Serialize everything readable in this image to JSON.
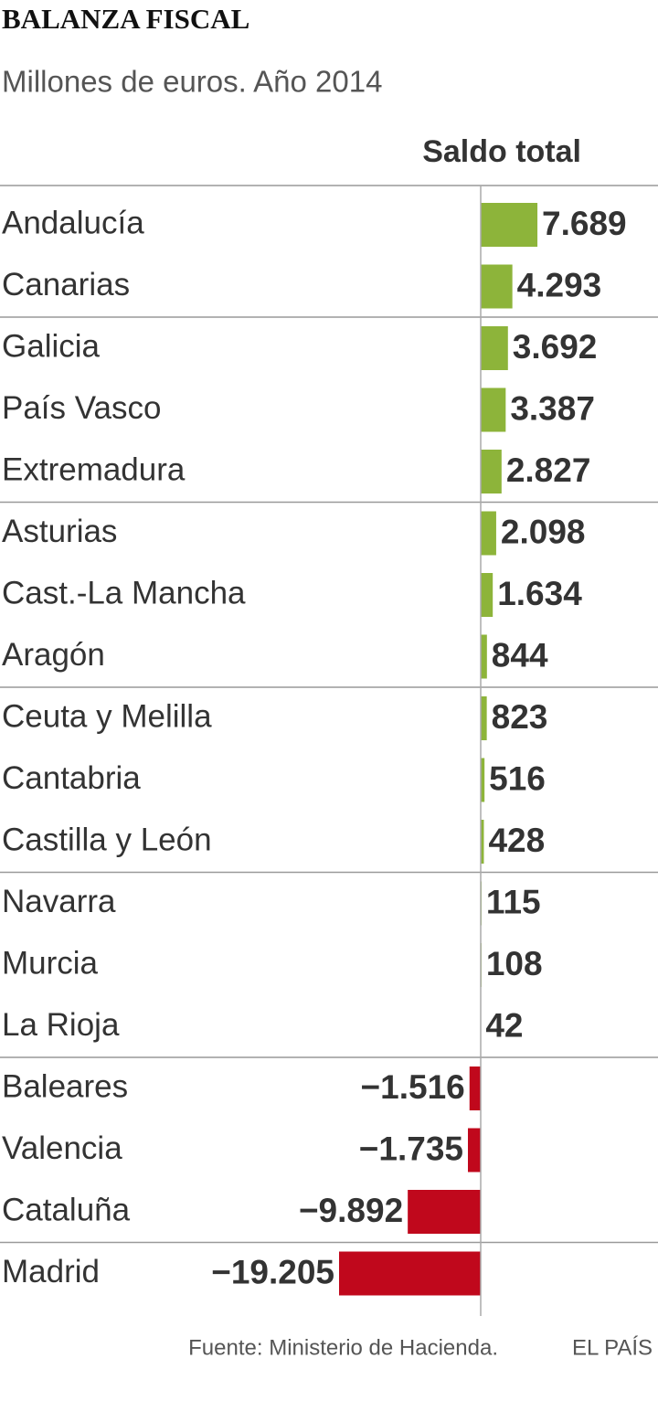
{
  "chart_data": {
    "type": "hbar",
    "title": "BALANZA FISCAL",
    "subtitle": "Millones de euros. Año 2014",
    "value_header": "Saldo total",
    "categories": [
      "Andalucía",
      "Canarias",
      "Galicia",
      "País Vasco",
      "Extremadura",
      "Asturias",
      "Cast.-La Mancha",
      "Aragón",
      "Ceuta y Melilla",
      "Cantabria",
      "Castilla y León",
      "Navarra",
      "Murcia",
      "La Rioja",
      "Baleares",
      "Valencia",
      "Cataluña",
      "Madrid"
    ],
    "values": [
      7689,
      4293,
      3692,
      3387,
      2827,
      2098,
      1634,
      844,
      823,
      516,
      428,
      115,
      108,
      42,
      -1516,
      -1735,
      -9892,
      -19205
    ],
    "value_labels": [
      "7.689",
      "4.293",
      "3.692",
      "3.387",
      "2.827",
      "2.098",
      "1.634",
      "844",
      "823",
      "516",
      "428",
      "115",
      "108",
      "42",
      "−1.516",
      "−1.735",
      "−9.892",
      "−19.205"
    ],
    "positive_color": "#8db43a",
    "negative_color": "#c0081c",
    "source": "Fuente: Ministerio de Hacienda.",
    "credit": "EL PAÍS"
  }
}
